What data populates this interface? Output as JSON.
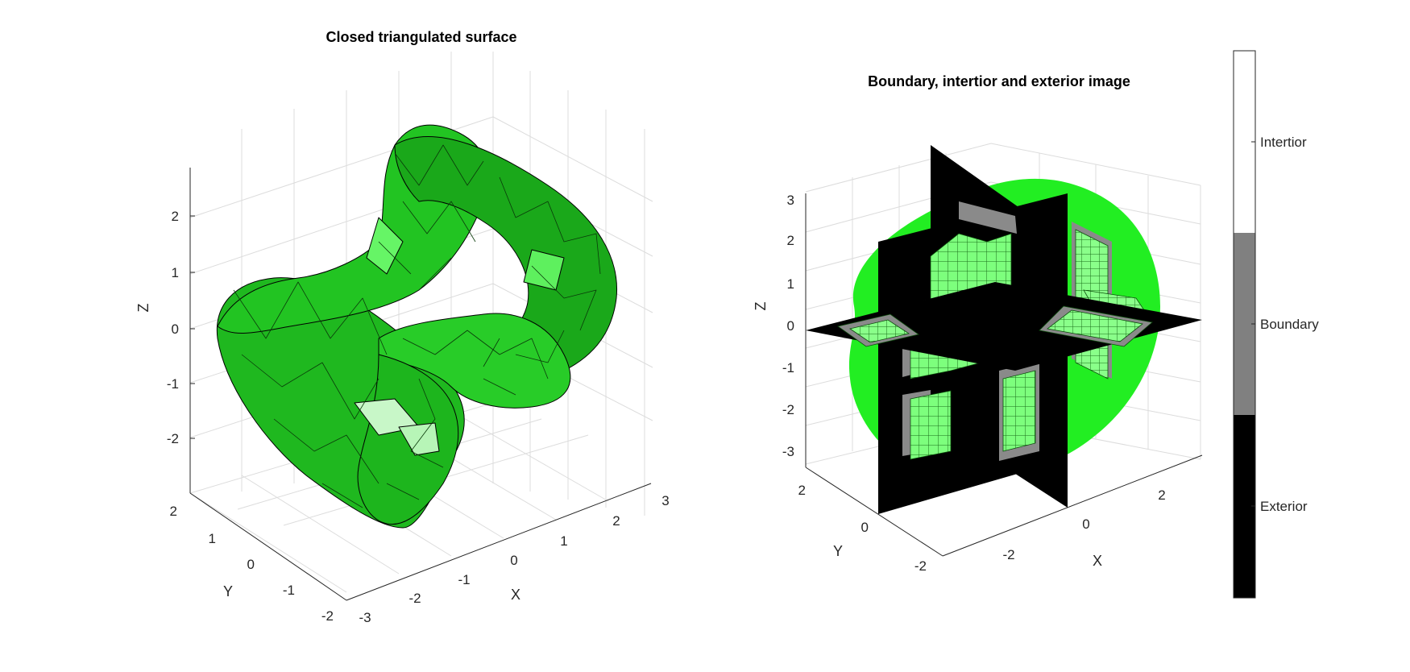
{
  "chart_data": [
    {
      "type": "surface3d",
      "title": "Closed triangulated surface",
      "xlabel": "X",
      "ylabel": "Y",
      "zlabel": "Z",
      "x_ticks": [
        "-3",
        "-2",
        "-1",
        "0",
        "1",
        "2",
        "3"
      ],
      "y_ticks": [
        "-2",
        "-1",
        "0",
        "1",
        "2"
      ],
      "z_ticks": [
        "-2",
        "-1",
        "0",
        "1",
        "2"
      ],
      "xlim": [
        -3,
        3
      ],
      "ylim": [
        -2,
        2
      ],
      "zlim": [
        -3,
        3
      ],
      "grid": true,
      "surface_color": "#22cc22",
      "edge_color": "#000000",
      "shape": "knotted tube"
    },
    {
      "type": "voxel_slices3d",
      "title": "Boundary, intertior and exterior image",
      "xlabel": "X",
      "ylabel": "Y",
      "zlabel": "Z",
      "x_ticks": [
        "-2",
        "0",
        "2"
      ],
      "y_ticks": [
        "-2",
        "0",
        "2"
      ],
      "z_ticks": [
        "-3",
        "-2",
        "-1",
        "0",
        "1",
        "2",
        "3"
      ],
      "grid": true,
      "colorbar": {
        "labels": [
          "Exterior",
          "Boundary",
          "Intertior"
        ],
        "colors": [
          "#000000",
          "#808080",
          "#ffffff"
        ]
      },
      "interior_color": "#66ff66",
      "volume_color": "#22ee22"
    }
  ]
}
